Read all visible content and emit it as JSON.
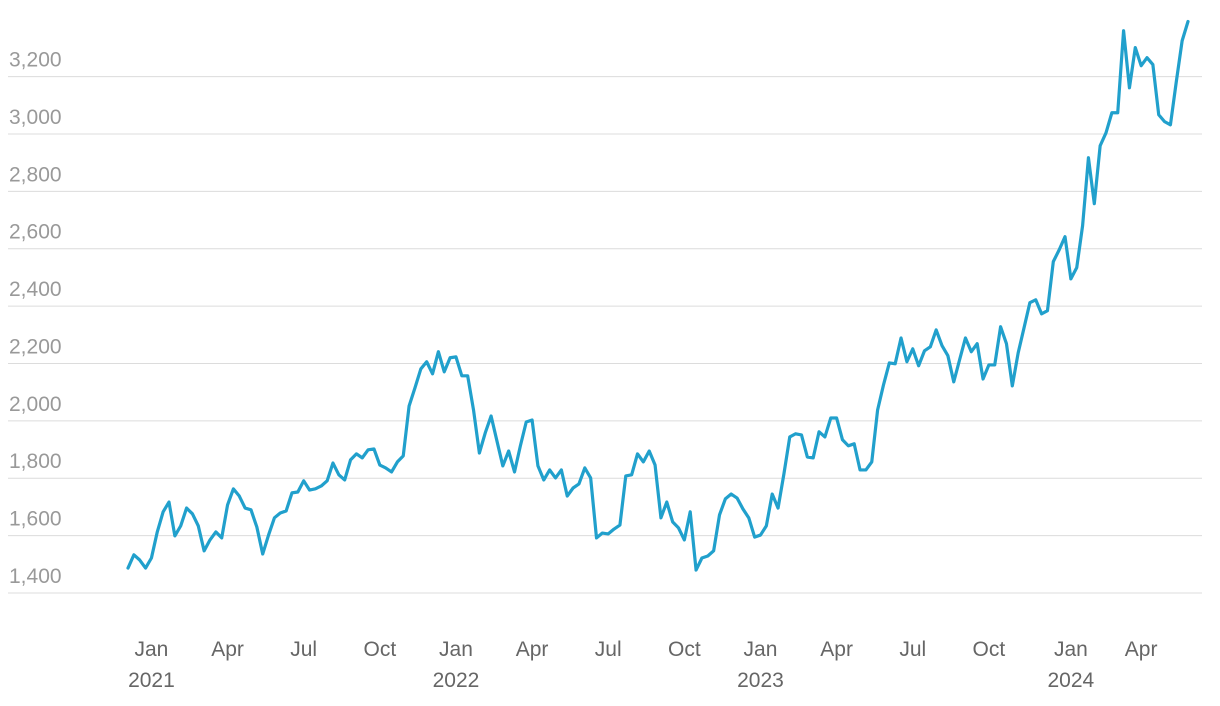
{
  "chart_data": {
    "type": "line",
    "categories": [
      null,
      null,
      null,
      null,
      "Jan",
      null,
      null,
      null,
      null,
      null,
      null,
      null,
      null,
      null,
      null,
      null,
      null,
      "Apr",
      null,
      null,
      null,
      null,
      null,
      null,
      null,
      null,
      null,
      null,
      null,
      null,
      "Jul",
      null,
      null,
      null,
      null,
      null,
      null,
      null,
      null,
      null,
      null,
      null,
      null,
      "Oct",
      null,
      null,
      null,
      null,
      null,
      null,
      null,
      null,
      null,
      null,
      null,
      null,
      "Jan",
      null,
      null,
      null,
      null,
      null,
      null,
      null,
      null,
      null,
      null,
      null,
      null,
      "Apr",
      null,
      null,
      null,
      null,
      null,
      null,
      null,
      null,
      null,
      null,
      null,
      null,
      "Jul",
      null,
      null,
      null,
      null,
      null,
      null,
      null,
      null,
      null,
      null,
      null,
      null,
      "Oct",
      null,
      null,
      null,
      null,
      null,
      null,
      null,
      null,
      null,
      null,
      null,
      null,
      "Jan",
      null,
      null,
      null,
      null,
      null,
      null,
      null,
      null,
      null,
      null,
      null,
      null,
      "Apr",
      null,
      null,
      null,
      null,
      null,
      null,
      null,
      null,
      null,
      null,
      null,
      null,
      "Jul",
      null,
      null,
      null,
      null,
      null,
      null,
      null,
      null,
      null,
      null,
      null,
      null,
      "Oct",
      null,
      null,
      null,
      null,
      null,
      null,
      null,
      null,
      null,
      null,
      null,
      null,
      null,
      "Jan",
      null,
      null,
      null,
      null,
      null,
      null,
      null,
      null,
      null,
      null,
      null,
      "Apr",
      null,
      null,
      null,
      null,
      null,
      null,
      null,
      null
    ],
    "years": [
      null,
      null,
      null,
      null,
      "2021",
      null,
      null,
      null,
      null,
      null,
      null,
      null,
      null,
      null,
      null,
      null,
      null,
      null,
      null,
      null,
      null,
      null,
      null,
      null,
      null,
      null,
      null,
      null,
      null,
      null,
      null,
      null,
      null,
      null,
      null,
      null,
      null,
      null,
      null,
      null,
      null,
      null,
      null,
      null,
      null,
      null,
      null,
      null,
      null,
      null,
      null,
      null,
      null,
      null,
      null,
      null,
      "2022",
      null,
      null,
      null,
      null,
      null,
      null,
      null,
      null,
      null,
      null,
      null,
      null,
      null,
      null,
      null,
      null,
      null,
      null,
      null,
      null,
      null,
      null,
      null,
      null,
      null,
      null,
      null,
      null,
      null,
      null,
      null,
      null,
      null,
      null,
      null,
      null,
      null,
      null,
      null,
      null,
      null,
      null,
      null,
      null,
      null,
      null,
      null,
      null,
      null,
      null,
      null,
      "2023",
      null,
      null,
      null,
      null,
      null,
      null,
      null,
      null,
      null,
      null,
      null,
      null,
      null,
      null,
      null,
      null,
      null,
      null,
      null,
      null,
      null,
      null,
      null,
      null,
      null,
      null,
      null,
      null,
      null,
      null,
      null,
      null,
      null,
      null,
      null,
      null,
      null,
      null,
      null,
      null,
      null,
      null,
      null,
      null,
      null,
      null,
      null,
      null,
      null,
      null,
      null,
      null,
      "2024",
      null,
      null,
      null,
      null,
      null,
      null,
      null,
      null,
      null,
      null,
      null,
      null,
      null,
      null,
      null,
      null,
      null,
      null,
      null,
      null
    ],
    "series": [
      {
        "color": "#21a0cc",
        "values": [
          1487,
          1533,
          1515,
          1487,
          1522,
          1613,
          1683,
          1717,
          1599,
          1634,
          1696,
          1676,
          1634,
          1547,
          1585,
          1613,
          1592,
          1707,
          1763,
          1738,
          1696,
          1690,
          1630,
          1536,
          1602,
          1662,
          1679,
          1686,
          1749,
          1752,
          1791,
          1759,
          1763,
          1773,
          1791,
          1853,
          1812,
          1794,
          1864,
          1885,
          1871,
          1899,
          1902,
          1846,
          1836,
          1822,
          1857,
          1878,
          2052,
          2115,
          2181,
          2206,
          2164,
          2241,
          2171,
          2220,
          2223,
          2157,
          2157,
          2038,
          1888,
          1958,
          2017,
          1930,
          1843,
          1895,
          1822,
          1913,
          1996,
          2003,
          1843,
          1794,
          1829,
          1801,
          1829,
          1738,
          1766,
          1780,
          1836,
          1801,
          1592,
          1609,
          1606,
          1623,
          1637,
          1808,
          1812,
          1885,
          1857,
          1895,
          1846,
          1662,
          1717,
          1648,
          1627,
          1585,
          1683,
          1480,
          1522,
          1529,
          1547,
          1672,
          1728,
          1745,
          1731,
          1693,
          1662,
          1595,
          1602,
          1634,
          1745,
          1696,
          1815,
          1944,
          1955,
          1951,
          1874,
          1871,
          1962,
          1944,
          2010,
          2010,
          1934,
          1913,
          1920,
          1829,
          1829,
          1857,
          2038,
          2125,
          2202,
          2199,
          2289,
          2206,
          2251,
          2192,
          2244,
          2258,
          2317,
          2262,
          2227,
          2136,
          2213,
          2289,
          2241,
          2269,
          2146,
          2195,
          2195,
          2328,
          2269,
          2122,
          2237,
          2324,
          2412,
          2422,
          2373,
          2384,
          2555,
          2596,
          2642,
          2495,
          2534,
          2680,
          2917,
          2757,
          2959,
          3004,
          3074,
          3074,
          3360,
          3161,
          3301,
          3238,
          3266,
          3242,
          3067,
          3043,
          3032,
          3182,
          3325,
          3392
        ]
      }
    ],
    "ylim": [
      1400,
      3460
    ],
    "yticks": [
      {
        "value": 1400,
        "label": "1,400"
      },
      {
        "value": 1600,
        "label": "1,600"
      },
      {
        "value": 1800,
        "label": "1,800"
      },
      {
        "value": 2000,
        "label": "2,000"
      },
      {
        "value": 2200,
        "label": "2,200"
      },
      {
        "value": 2400,
        "label": "2,400"
      },
      {
        "value": 2600,
        "label": "2,600"
      },
      {
        "value": 2800,
        "label": "2,800"
      },
      {
        "value": 3000,
        "label": "3,000"
      },
      {
        "value": 3200,
        "label": "3,200"
      }
    ],
    "grid": true
  }
}
